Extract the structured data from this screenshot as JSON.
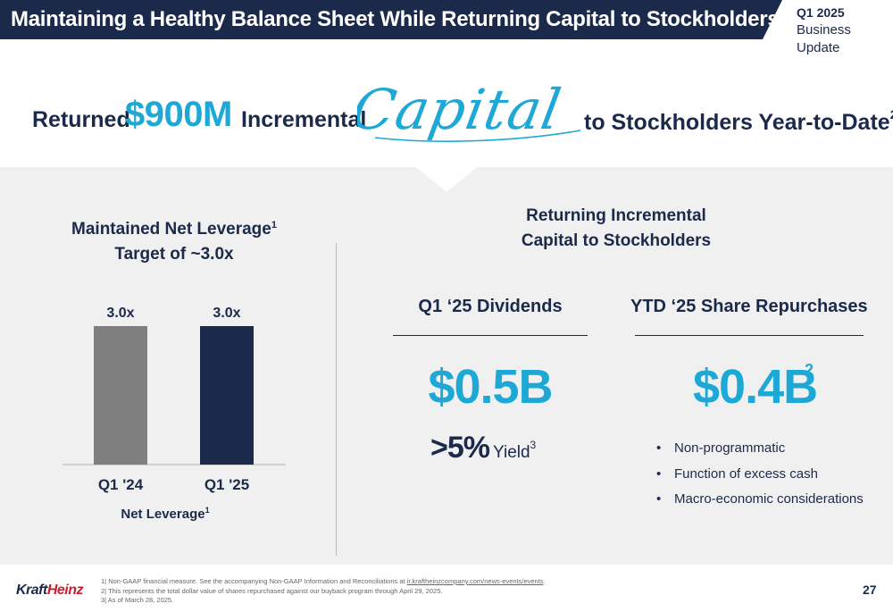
{
  "header": {
    "title": "Maintaining a Healthy Balance Sheet While Returning Capital to Stockholders",
    "quarter": "Q1 2025",
    "doc_type": "Business Update"
  },
  "headline": {
    "returned": "Returned",
    "amount": "$900M",
    "incremental": "Incremental",
    "script_word": "Capital",
    "tail": "to Stockholders Year-to-Date",
    "tail_sup": "2"
  },
  "leverage": {
    "title_line1": "Maintained Net Leverage",
    "title_sup": "1",
    "title_line2": "Target of ~3.0x",
    "caption": "Net Leverage",
    "caption_sup": "1"
  },
  "chart_data": {
    "type": "bar",
    "categories": [
      "Q1 '24",
      "Q1 '25"
    ],
    "values": [
      3.0,
      3.0
    ],
    "data_labels": [
      "3.0x",
      "3.0x"
    ],
    "bar_colors": [
      "#7f7f7f",
      "#1b2a4a"
    ],
    "xlabel": "Net Leverage",
    "ylabel": "",
    "ylim": [
      0,
      3.0
    ]
  },
  "returning": {
    "title_line1": "Returning Incremental",
    "title_line2": "Capital to Stockholders"
  },
  "dividends": {
    "heading": "Q1 ‘25 Dividends",
    "value": "$0.5B",
    "yield_pct": ">5%",
    "yield_label": "Yield",
    "yield_sup": "3"
  },
  "repurchases": {
    "heading": "YTD ‘25 Share Repurchases",
    "value": "$0.4B",
    "value_sup": "2",
    "bullets": [
      "Non-programmatic",
      "Function of excess cash",
      "Macro-economic considerations"
    ]
  },
  "footer": {
    "logo_kraft": "Kraft",
    "logo_heinz": "Heinz",
    "note1_prefix": "1| Non-GAAP financial measure. See the accompanying Non-GAAP Information and Reconciliations at ",
    "note1_link": "ir.kraftheinzcompany.com/news-events/events",
    "note1_suffix": ".",
    "note2": "2| This represents the total dollar value of shares repurchased against our buyback program through April 29, 2025.",
    "note3": "3| As of March 28, 2025.",
    "page_number": "27"
  },
  "colors": {
    "navy": "#1b2a4a",
    "accent_blue": "#1ea8d6",
    "gray_bar": "#7f7f7f",
    "panel": "#f0f0f0",
    "heinz_red": "#c8202e"
  }
}
